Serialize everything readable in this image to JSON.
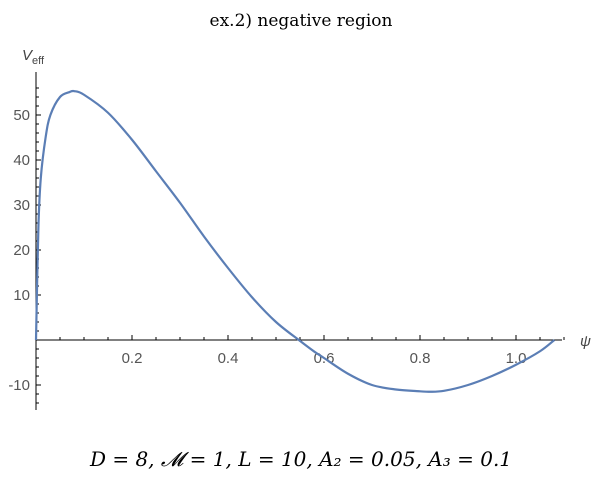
{
  "chart_data": {
    "type": "line",
    "title": "ex.2) negative region",
    "xlabel": "ψ",
    "ylabel": "V",
    "ylabel_subscript": "eff",
    "caption": "D = 8, 𝓜 = 1, L = 10, A₂ = 0.05, A₃ = 0.1",
    "xlim": [
      0,
      1.1
    ],
    "ylim": [
      -15,
      57
    ],
    "x_ticks": [
      "0.2",
      "0.4",
      "0.6",
      "0.8",
      "1.0"
    ],
    "y_ticks": [
      "-10",
      "10",
      "20",
      "30",
      "40",
      "50"
    ],
    "grid": false,
    "series": [
      {
        "color": "#5b7eb5",
        "x": [
          0.0,
          0.005,
          0.01,
          0.02,
          0.03,
          0.05,
          0.07,
          0.08,
          0.1,
          0.15,
          0.2,
          0.25,
          0.3,
          0.35,
          0.4,
          0.45,
          0.5,
          0.55,
          0.58,
          0.6,
          0.65,
          0.7,
          0.75,
          0.8,
          0.82,
          0.85,
          0.9,
          0.95,
          1.0,
          1.05,
          1.08
        ],
        "y": [
          0.0,
          25.0,
          36.0,
          45.0,
          50.0,
          54.0,
          55.1,
          55.3,
          54.5,
          50.5,
          44.5,
          37.5,
          30.5,
          23.0,
          16.0,
          9.5,
          4.0,
          -0.2,
          -2.6,
          -4.0,
          -7.5,
          -10.0,
          -11.0,
          -11.4,
          -11.5,
          -11.3,
          -10.0,
          -8.0,
          -5.5,
          -2.5,
          0.0
        ]
      }
    ]
  }
}
